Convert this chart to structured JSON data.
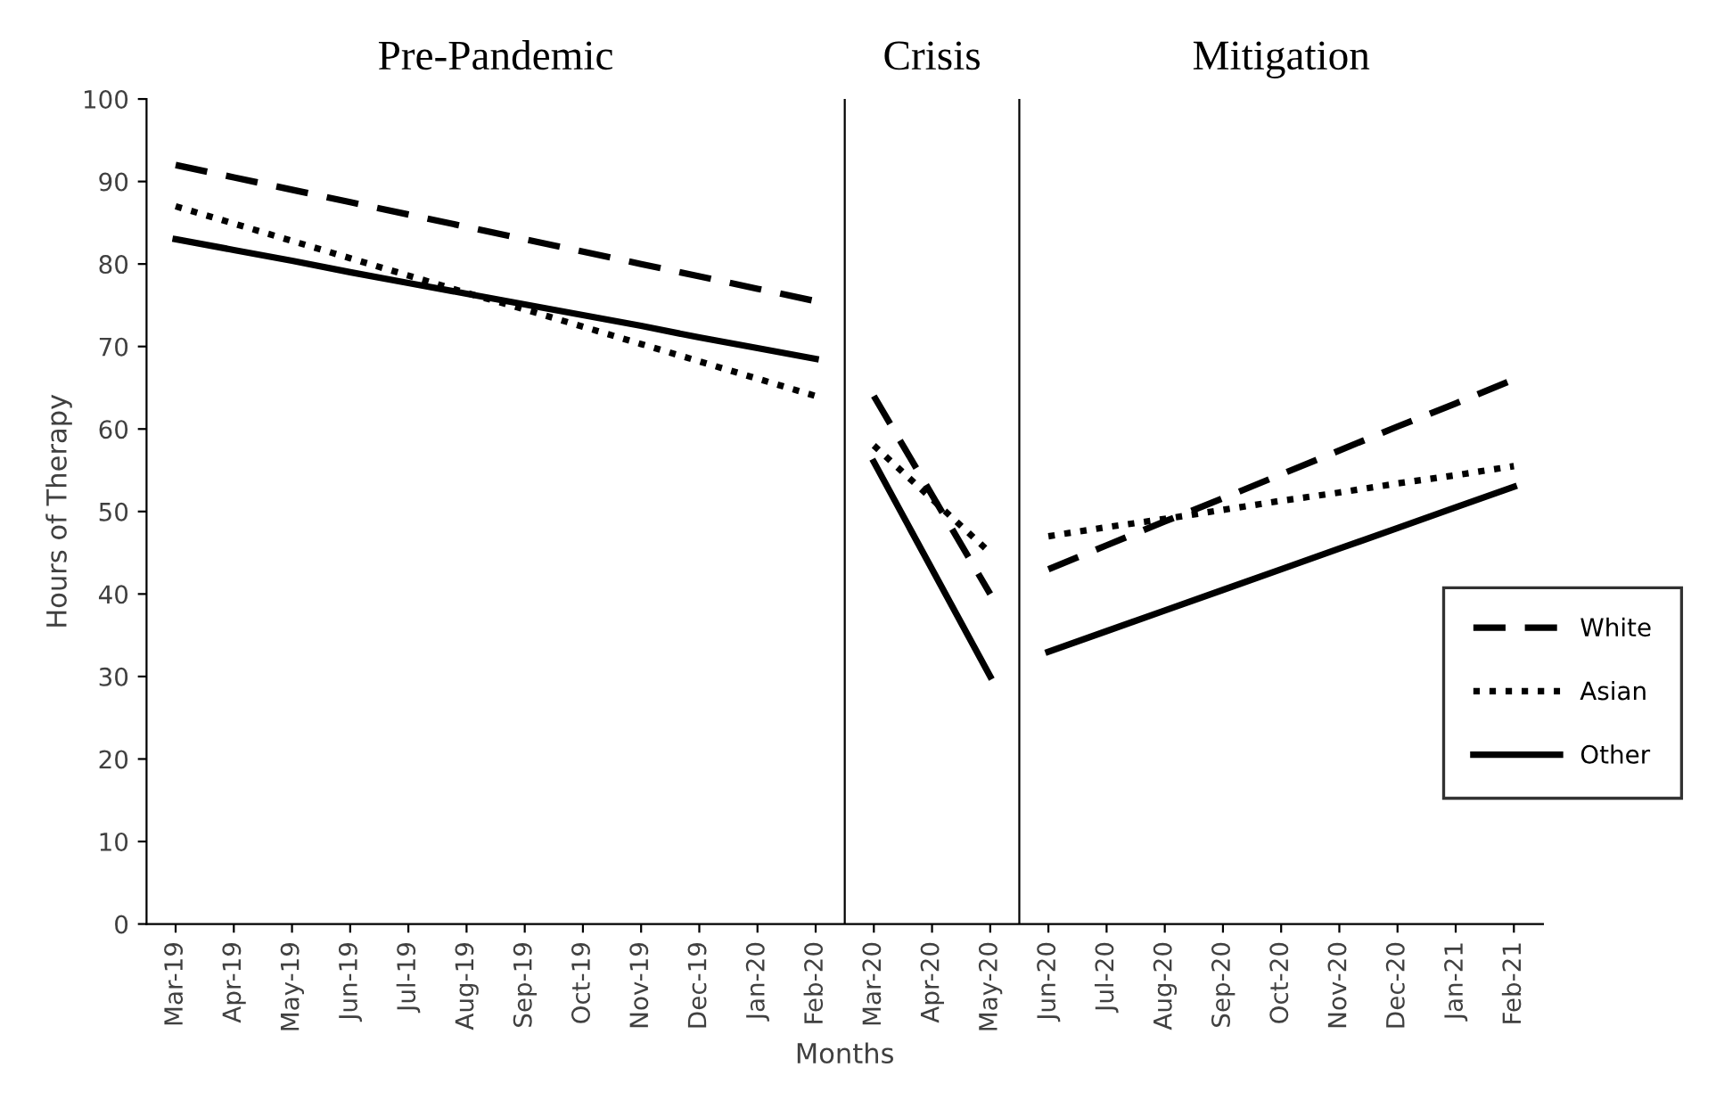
{
  "chart_data": {
    "type": "line",
    "ylabel": "Hours of Therapy",
    "xlabel": "Months",
    "categories": [
      "Mar-19",
      "Apr-19",
      "May-19",
      "Jun-19",
      "Jul-19",
      "Aug-19",
      "Sep-19",
      "Oct-19",
      "Nov-19",
      "Dec-19",
      "Jan-20",
      "Feb-20",
      "Mar-20",
      "Apr-20",
      "May-20",
      "Jun-20",
      "Jul-20",
      "Aug-20",
      "Sep-20",
      "Oct-20",
      "Nov-20",
      "Dec-20",
      "Jan-21",
      "Feb-21"
    ],
    "series": [
      {
        "name": "White",
        "color": "#000000",
        "line_style": "dashed",
        "values": [
          92,
          90.5,
          89,
          87.5,
          86,
          84.5,
          83,
          81.5,
          80,
          78.5,
          77,
          75.5,
          64,
          52,
          40,
          43,
          45.9,
          48.8,
          51.6,
          54.5,
          57.4,
          60.3,
          63.1,
          66
        ]
      },
      {
        "name": "Asian",
        "color": "#000000",
        "line_style": "dotted",
        "values": [
          87,
          84.9,
          82.8,
          80.7,
          78.6,
          76.5,
          74.5,
          72.4,
          70.3,
          68.2,
          66.1,
          64,
          58,
          51.5,
          45,
          47,
          48.1,
          49.1,
          50.2,
          51.3,
          52.3,
          53.4,
          54.4,
          55.5
        ]
      },
      {
        "name": "Other",
        "color": "#000000",
        "line_style": "solid",
        "values": [
          83,
          81.7,
          80.4,
          79,
          77.7,
          76.4,
          75.1,
          73.8,
          72.5,
          71.1,
          69.8,
          68.5,
          56,
          43,
          30,
          33,
          35.5,
          38,
          40.5,
          43,
          45.5,
          48,
          50.5,
          53
        ]
      }
    ],
    "ylim": [
      0,
      100
    ],
    "yticks": [
      0,
      10,
      20,
      30,
      40,
      50,
      60,
      70,
      80,
      90,
      100
    ],
    "annotations": [
      "Pre-Pandemic",
      "Crisis",
      "Mitigation"
    ],
    "legend": "right",
    "marker": "none",
    "grid": false
  }
}
